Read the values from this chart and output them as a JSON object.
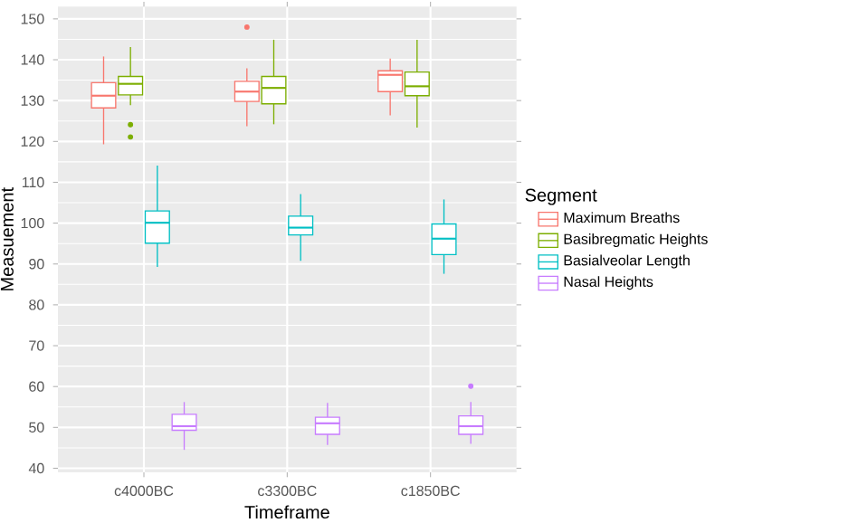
{
  "chart_data": {
    "type": "box",
    "xlabel": "Timeframe",
    "ylabel": "Measuement",
    "legend_title": "Segment",
    "categories": [
      "c4000BC",
      "c3300BC",
      "c1850BC"
    ],
    "ylim": [
      39,
      153
    ],
    "yticks": [
      40,
      50,
      60,
      70,
      80,
      90,
      100,
      110,
      120,
      130,
      140,
      150
    ],
    "grid": true,
    "legend": "right",
    "series": [
      {
        "name": "Maximum Breaths",
        "color": "#F8766D",
        "boxes": [
          {
            "low": 119.3,
            "q1": 128.2,
            "median": 131.2,
            "q3": 134.4,
            "high": 140.8
          },
          {
            "low": 123.7,
            "q1": 129.8,
            "median": 132.2,
            "q3": 134.7,
            "high": 137.9,
            "outliers": [
              148
            ]
          },
          {
            "low": 126.4,
            "q1": 132.2,
            "median": 136.3,
            "q3": 137.3,
            "high": 140.3
          }
        ]
      },
      {
        "name": "Basibregmatic Heights",
        "color": "#7CAE00",
        "boxes": [
          {
            "low": 128.9,
            "q1": 131.4,
            "median": 134.1,
            "q3": 135.9,
            "high": 143.1,
            "outliers": [
              124.1,
              121.1
            ]
          },
          {
            "low": 124.2,
            "q1": 129.2,
            "median": 133.1,
            "q3": 135.9,
            "high": 144.9
          },
          {
            "low": 123.4,
            "q1": 131.2,
            "median": 133.5,
            "q3": 137,
            "high": 144.9
          }
        ]
      },
      {
        "name": "Basialveolar Length",
        "color": "#00BFC4",
        "boxes": [
          {
            "low": 89.3,
            "q1": 95.1,
            "median": 100.1,
            "q3": 103,
            "high": 114.1
          },
          {
            "low": 90.8,
            "q1": 97.1,
            "median": 98.9,
            "q3": 101.7,
            "high": 107.1
          },
          {
            "low": 87.6,
            "q1": 92.3,
            "median": 96.2,
            "q3": 99.8,
            "high": 105.8
          }
        ]
      },
      {
        "name": "Nasal Heights",
        "color": "#C77CFF",
        "boxes": [
          {
            "low": 44.5,
            "q1": 49.3,
            "median": 50.3,
            "q3": 53.2,
            "high": 56.2
          },
          {
            "low": 45.7,
            "q1": 48.3,
            "median": 51,
            "q3": 52.5,
            "high": 56
          },
          {
            "low": 46,
            "q1": 48.3,
            "median": 50.3,
            "q3": 52.8,
            "high": 56.2,
            "outliers": [
              60.1
            ]
          }
        ]
      }
    ]
  }
}
